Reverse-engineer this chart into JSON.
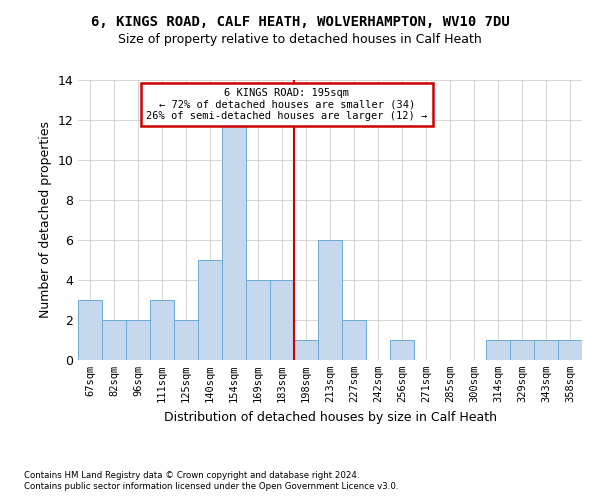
{
  "title": "6, KINGS ROAD, CALF HEATH, WOLVERHAMPTON, WV10 7DU",
  "subtitle": "Size of property relative to detached houses in Calf Heath",
  "xlabel": "Distribution of detached houses by size in Calf Heath",
  "ylabel": "Number of detached properties",
  "bar_color": "#c5d8ed",
  "bar_edge_color": "#6aaad4",
  "categories": [
    "67sqm",
    "82sqm",
    "96sqm",
    "111sqm",
    "125sqm",
    "140sqm",
    "154sqm",
    "169sqm",
    "183sqm",
    "198sqm",
    "213sqm",
    "227sqm",
    "242sqm",
    "256sqm",
    "271sqm",
    "285sqm",
    "300sqm",
    "314sqm",
    "329sqm",
    "343sqm",
    "358sqm"
  ],
  "values": [
    3,
    2,
    2,
    3,
    2,
    5,
    12,
    4,
    4,
    1,
    6,
    2,
    0,
    1,
    0,
    0,
    0,
    1,
    1,
    1,
    1
  ],
  "ylim": [
    0,
    14
  ],
  "yticks": [
    0,
    2,
    4,
    6,
    8,
    10,
    12,
    14
  ],
  "annotation_line1": "6 KINGS ROAD: 195sqm",
  "annotation_line2": "← 72% of detached houses are smaller (34)",
  "annotation_line3": "26% of semi-detached houses are larger (12) →",
  "annotation_box_color": "#ffffff",
  "annotation_box_edge_color": "#cc0000",
  "vline_color": "#cc0000",
  "vline_x_index": 8.5,
  "footer_line1": "Contains HM Land Registry data © Crown copyright and database right 2024.",
  "footer_line2": "Contains public sector information licensed under the Open Government Licence v3.0.",
  "bg_color": "#ffffff",
  "grid_color": "#d0d0d0"
}
